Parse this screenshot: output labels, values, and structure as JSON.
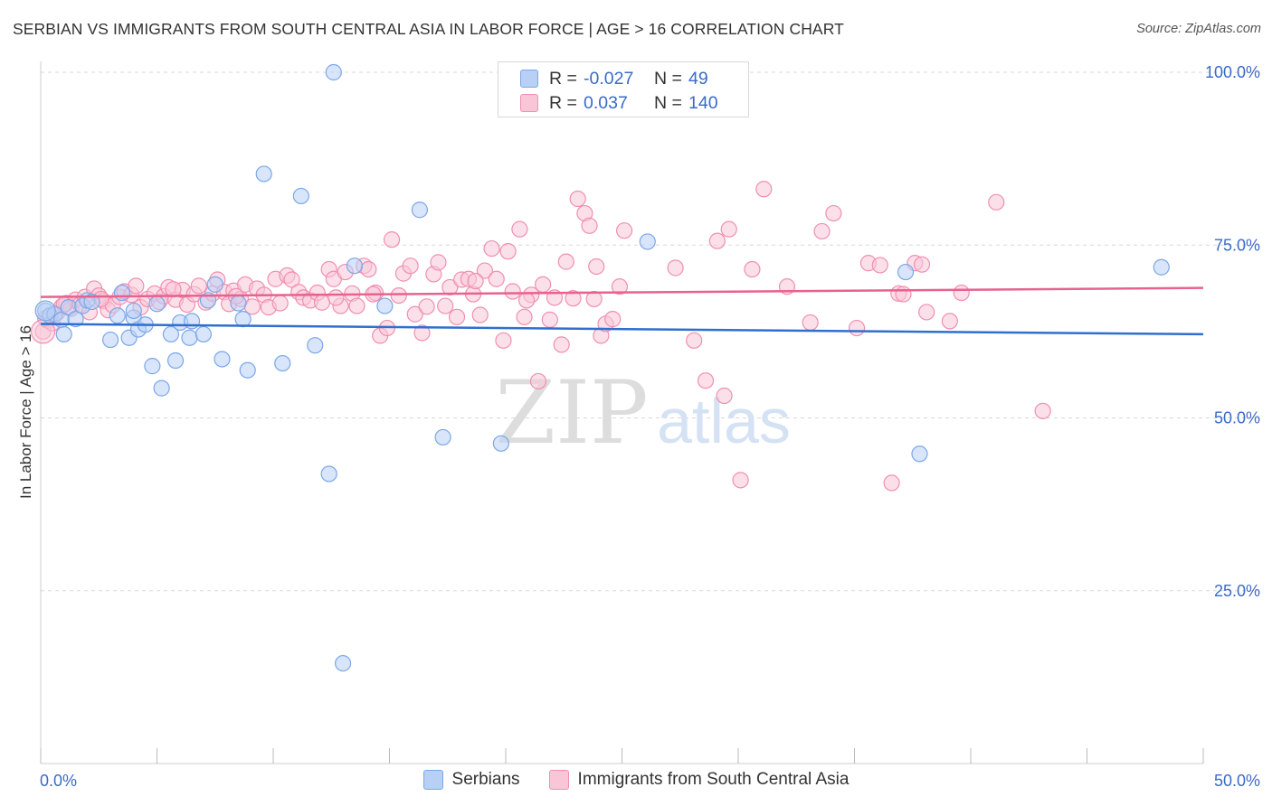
{
  "header": {
    "title": "SERBIAN VS IMMIGRANTS FROM SOUTH CENTRAL ASIA IN LABOR FORCE | AGE > 16 CORRELATION CHART",
    "source": "Source: ZipAtlas.com"
  },
  "watermark": {
    "zip": "ZIP",
    "atlas": "atlas"
  },
  "stats_legend": {
    "rows": [
      {
        "r_label": "R =",
        "r_value": "-0.027",
        "n_label": "N =",
        "n_value": "49"
      },
      {
        "r_label": "R =",
        "r_value": "0.037",
        "n_label": "N =",
        "n_value": "140"
      }
    ]
  },
  "chart_data": {
    "type": "scatter",
    "title": "SERBIAN VS IMMIGRANTS FROM SOUTH CENTRAL ASIA IN LABOR FORCE | AGE > 16 CORRELATION CHART",
    "xlabel": "",
    "ylabel": "In Labor Force | Age > 16",
    "xlim": [
      0,
      50
    ],
    "ylim": [
      0,
      100
    ],
    "x_tick_labels": [
      "0.0%",
      "50.0%"
    ],
    "y_tick_values": [
      25,
      50,
      75,
      100
    ],
    "y_tick_labels": [
      "25.0%",
      "50.0%",
      "75.0%",
      "100.0%"
    ],
    "grid": true,
    "legend_position": "bottom-center",
    "colors": {
      "serbians": "#7ba7e8",
      "serbians_fill": "#b8d0f5",
      "serbians_line": "#2f6fce",
      "asia": "#f08fb0",
      "asia_fill": "#f9c6d7",
      "asia_line": "#e8628e",
      "axis_label": "#3a6bc8"
    },
    "series": [
      {
        "name": "Serbians",
        "trend": {
          "x": [
            0,
            50
          ],
          "y": [
            63.6,
            62.1
          ]
        },
        "points": [
          [
            0.2,
            65.5
          ],
          [
            0.4,
            64.8
          ],
          [
            0.6,
            65.0
          ],
          [
            0.9,
            64.2
          ],
          [
            1.0,
            62.1
          ],
          [
            1.2,
            66.0
          ],
          [
            1.5,
            64.3
          ],
          [
            1.8,
            66.2
          ],
          [
            2.0,
            67.0
          ],
          [
            2.2,
            66.8
          ],
          [
            3.0,
            61.3
          ],
          [
            3.3,
            64.8
          ],
          [
            3.5,
            68.1
          ],
          [
            3.8,
            61.6
          ],
          [
            4.0,
            64.5
          ],
          [
            4.2,
            62.8
          ],
          [
            4.5,
            63.5
          ],
          [
            4.8,
            57.5
          ],
          [
            5.0,
            66.5
          ],
          [
            5.2,
            54.3
          ],
          [
            5.6,
            62.1
          ],
          [
            5.8,
            58.3
          ],
          [
            6.0,
            63.8
          ],
          [
            6.4,
            61.6
          ],
          [
            7.0,
            62.1
          ],
          [
            7.2,
            67.0
          ],
          [
            7.5,
            69.3
          ],
          [
            7.8,
            58.5
          ],
          [
            8.5,
            66.6
          ],
          [
            8.7,
            64.3
          ],
          [
            8.9,
            56.9
          ],
          [
            9.6,
            85.3
          ],
          [
            10.4,
            57.9
          ],
          [
            11.2,
            82.1
          ],
          [
            11.8,
            60.5
          ],
          [
            12.4,
            41.9
          ],
          [
            12.6,
            100.0
          ],
          [
            13.0,
            14.5
          ],
          [
            13.5,
            72.0
          ],
          [
            14.8,
            66.2
          ],
          [
            16.3,
            80.1
          ],
          [
            17.3,
            47.2
          ],
          [
            19.8,
            46.3
          ],
          [
            26.1,
            75.5
          ],
          [
            37.2,
            71.1
          ],
          [
            37.8,
            44.8
          ],
          [
            48.2,
            71.8
          ],
          [
            6.5,
            64.0
          ],
          [
            4.0,
            65.5
          ]
        ]
      },
      {
        "name": "Immigrants from South Central Asia",
        "trend": {
          "x": [
            0,
            50
          ],
          "y": [
            67.5,
            68.8
          ]
        },
        "points": [
          [
            0.1,
            62.5
          ],
          [
            0.3,
            64.1
          ],
          [
            0.5,
            63.7
          ],
          [
            0.7,
            65.2
          ],
          [
            0.9,
            66.1
          ],
          [
            1.1,
            66.6
          ],
          [
            1.3,
            65.8
          ],
          [
            1.5,
            67.1
          ],
          [
            1.7,
            66.4
          ],
          [
            1.9,
            67.5
          ],
          [
            2.1,
            65.3
          ],
          [
            2.3,
            68.7
          ],
          [
            2.5,
            67.7
          ],
          [
            2.7,
            66.9
          ],
          [
            2.9,
            65.6
          ],
          [
            3.1,
            66.3
          ],
          [
            3.4,
            67.5
          ],
          [
            3.6,
            68.3
          ],
          [
            3.9,
            67.8
          ],
          [
            4.1,
            69.1
          ],
          [
            4.3,
            66.0
          ],
          [
            4.6,
            67.2
          ],
          [
            4.9,
            68.0
          ],
          [
            5.1,
            66.8
          ],
          [
            5.3,
            67.6
          ],
          [
            5.5,
            68.9
          ],
          [
            5.8,
            67.1
          ],
          [
            6.1,
            68.5
          ],
          [
            6.3,
            66.4
          ],
          [
            6.6,
            67.9
          ],
          [
            6.8,
            69.1
          ],
          [
            7.1,
            66.7
          ],
          [
            7.4,
            68.0
          ],
          [
            7.6,
            70.0
          ],
          [
            7.9,
            68.2
          ],
          [
            8.1,
            66.5
          ],
          [
            8.3,
            68.4
          ],
          [
            8.6,
            67.2
          ],
          [
            8.8,
            69.3
          ],
          [
            9.1,
            66.1
          ],
          [
            9.3,
            68.7
          ],
          [
            9.6,
            67.8
          ],
          [
            9.8,
            66.0
          ],
          [
            10.1,
            70.1
          ],
          [
            10.3,
            66.6
          ],
          [
            10.6,
            70.6
          ],
          [
            10.8,
            70.0
          ],
          [
            11.1,
            68.2
          ],
          [
            11.3,
            67.4
          ],
          [
            11.6,
            67.0
          ],
          [
            11.9,
            68.1
          ],
          [
            12.1,
            66.7
          ],
          [
            12.4,
            71.5
          ],
          [
            12.6,
            70.1
          ],
          [
            12.9,
            66.2
          ],
          [
            13.1,
            71.1
          ],
          [
            13.4,
            68.0
          ],
          [
            13.6,
            66.2
          ],
          [
            13.9,
            72.0
          ],
          [
            14.1,
            71.5
          ],
          [
            14.4,
            68.1
          ],
          [
            14.6,
            61.9
          ],
          [
            14.9,
            63.0
          ],
          [
            15.1,
            75.8
          ],
          [
            15.4,
            67.7
          ],
          [
            15.6,
            70.9
          ],
          [
            15.9,
            72.0
          ],
          [
            16.1,
            65.0
          ],
          [
            16.4,
            62.3
          ],
          [
            16.6,
            66.1
          ],
          [
            16.9,
            70.8
          ],
          [
            17.1,
            72.5
          ],
          [
            17.4,
            66.2
          ],
          [
            17.6,
            68.9
          ],
          [
            17.9,
            64.6
          ],
          [
            18.1,
            70.0
          ],
          [
            18.4,
            70.1
          ],
          [
            18.6,
            67.9
          ],
          [
            18.9,
            64.9
          ],
          [
            19.1,
            71.3
          ],
          [
            19.4,
            74.5
          ],
          [
            19.6,
            70.1
          ],
          [
            19.9,
            61.2
          ],
          [
            20.1,
            74.1
          ],
          [
            20.3,
            68.3
          ],
          [
            20.6,
            77.3
          ],
          [
            20.8,
            64.6
          ],
          [
            21.1,
            67.8
          ],
          [
            21.4,
            55.3
          ],
          [
            21.6,
            69.3
          ],
          [
            21.9,
            64.2
          ],
          [
            22.1,
            67.4
          ],
          [
            22.4,
            60.6
          ],
          [
            22.6,
            72.6
          ],
          [
            22.9,
            67.3
          ],
          [
            23.1,
            81.7
          ],
          [
            23.4,
            79.6
          ],
          [
            23.6,
            77.8
          ],
          [
            23.9,
            71.9
          ],
          [
            24.1,
            61.9
          ],
          [
            24.3,
            63.6
          ],
          [
            24.6,
            64.3
          ],
          [
            24.9,
            69.0
          ],
          [
            25.1,
            77.1
          ],
          [
            27.3,
            71.7
          ],
          [
            28.1,
            61.2
          ],
          [
            28.6,
            55.4
          ],
          [
            29.1,
            75.6
          ],
          [
            29.4,
            53.2
          ],
          [
            29.6,
            77.3
          ],
          [
            30.1,
            41.0
          ],
          [
            30.6,
            71.5
          ],
          [
            31.1,
            83.1
          ],
          [
            32.1,
            69.0
          ],
          [
            33.1,
            63.8
          ],
          [
            33.6,
            77.0
          ],
          [
            34.1,
            79.6
          ],
          [
            35.1,
            63.0
          ],
          [
            35.6,
            72.4
          ],
          [
            36.1,
            72.1
          ],
          [
            36.6,
            40.6
          ],
          [
            36.9,
            68.0
          ],
          [
            37.1,
            67.9
          ],
          [
            37.6,
            72.4
          ],
          [
            37.9,
            72.2
          ],
          [
            38.1,
            65.3
          ],
          [
            39.1,
            64.0
          ],
          [
            39.6,
            68.1
          ],
          [
            41.1,
            81.2
          ],
          [
            43.1,
            51.0
          ],
          [
            2.6,
            67.2
          ],
          [
            5.7,
            68.6
          ],
          [
            8.4,
            67.6
          ],
          [
            12.7,
            67.4
          ],
          [
            14.3,
            67.9
          ],
          [
            18.7,
            69.8
          ],
          [
            20.9,
            67.0
          ],
          [
            23.8,
            67.2
          ],
          [
            0.2,
            64.4
          ],
          [
            1.0,
            66.4
          ]
        ]
      }
    ]
  }
}
